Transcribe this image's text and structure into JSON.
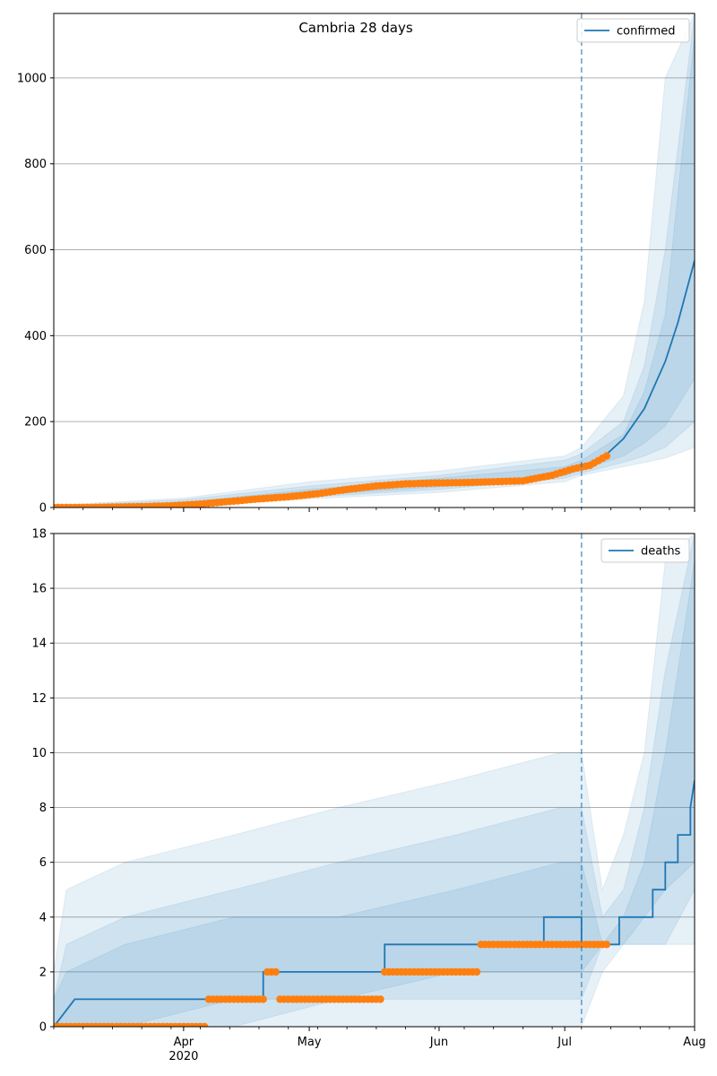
{
  "title": "Cambria 28 days",
  "chart_data": [
    {
      "type": "line",
      "name": "confirmed-panel",
      "series": [
        {
          "name": "confirmed",
          "x": [
            "2020-03-04",
            "2020-03-11",
            "2020-03-18",
            "2020-03-25",
            "2020-04-01",
            "2020-04-08",
            "2020-04-15",
            "2020-04-22",
            "2020-04-29",
            "2020-05-06",
            "2020-05-13",
            "2020-05-20",
            "2020-05-27",
            "2020-06-03",
            "2020-06-10",
            "2020-06-17",
            "2020-06-24",
            "2020-07-01",
            "2020-07-05",
            "2020-07-10",
            "2020-07-15",
            "2020-07-20",
            "2020-07-25",
            "2020-07-28",
            "2020-08-01"
          ],
          "values": [
            0,
            1,
            2,
            4,
            7,
            11,
            17,
            24,
            30,
            37,
            45,
            51,
            55,
            58,
            60,
            62,
            68,
            80,
            95,
            115,
            160,
            230,
            340,
            430,
            575
          ]
        }
      ],
      "observed": {
        "x": [
          "2020-03-01",
          "2020-03-08",
          "2020-03-15",
          "2020-03-22",
          "2020-03-29",
          "2020-04-05",
          "2020-04-12",
          "2020-04-19",
          "2020-04-26",
          "2020-05-03",
          "2020-05-10",
          "2020-05-17",
          "2020-05-24",
          "2020-05-31",
          "2020-06-07",
          "2020-06-14",
          "2020-06-21",
          "2020-06-28",
          "2020-07-03",
          "2020-07-07",
          "2020-07-11"
        ],
        "values": [
          0,
          0,
          1,
          2,
          4,
          8,
          14,
          20,
          25,
          32,
          42,
          50,
          55,
          57,
          58,
          60,
          62,
          75,
          90,
          98,
          120
        ]
      },
      "bands": [
        {
          "x": [
            "2020-03-01",
            "2020-04-01",
            "2020-05-01",
            "2020-06-01",
            "2020-07-01",
            "2020-07-05",
            "2020-07-15",
            "2020-07-20",
            "2020-07-25",
            "2020-08-01"
          ],
          "lower": [
            0,
            3,
            20,
            35,
            60,
            75,
            95,
            105,
            115,
            140
          ],
          "upper": [
            5,
            22,
            60,
            85,
            120,
            140,
            260,
            480,
            1000,
            1150
          ]
        },
        {
          "x": [
            "2020-03-01",
            "2020-04-01",
            "2020-05-01",
            "2020-06-01",
            "2020-07-01",
            "2020-07-05",
            "2020-07-15",
            "2020-07-20",
            "2020-07-25",
            "2020-08-01"
          ],
          "lower": [
            0,
            4,
            24,
            42,
            68,
            80,
            105,
            120,
            140,
            200
          ],
          "upper": [
            3,
            18,
            50,
            75,
            110,
            125,
            200,
            330,
            600,
            1150
          ]
        },
        {
          "x": [
            "2020-03-01",
            "2020-04-01",
            "2020-05-01",
            "2020-06-01",
            "2020-07-01",
            "2020-07-05",
            "2020-07-15",
            "2020-07-20",
            "2020-07-25",
            "2020-08-01"
          ],
          "lower": [
            0,
            5,
            28,
            48,
            74,
            88,
            120,
            150,
            190,
            300
          ],
          "upper": [
            2,
            12,
            42,
            68,
            95,
            110,
            170,
            270,
            450,
            1100
          ]
        }
      ],
      "vline": "2020-07-05",
      "ylim": [
        0,
        1150
      ],
      "yticks": [
        0,
        200,
        400,
        600,
        800,
        1000
      ],
      "grid": true,
      "legend": "top-right",
      "legend_label": "confirmed"
    },
    {
      "type": "line",
      "name": "deaths-panel",
      "series": [
        {
          "name": "deaths",
          "x": [
            "2020-03-01",
            "2020-03_6",
            "2020-03-06",
            "2020-04-20",
            "2020-04-20",
            "2020-05-19",
            "2020-05-19",
            "2020-06-26",
            "2020-06-26",
            "2020-07-05",
            "2020-07-05",
            "2020-07-14",
            "2020-07-14",
            "2020-07-22",
            "2020-07-22",
            "2020-07-25",
            "2020-07-25",
            "2020-07-28",
            "2020-07-28",
            "2020-07-31",
            "2020-07-31",
            "2020-08-01"
          ],
          "values": [
            0,
            0,
            1,
            1,
            2,
            2,
            3,
            3,
            4,
            4,
            3,
            3,
            4,
            4,
            5,
            5,
            6,
            6,
            7,
            7,
            8,
            9
          ]
        }
      ],
      "observed": {
        "x": [
          "2020-03-01",
          "2020-04-07",
          "2020-04-07",
          "2020-04-21",
          "2020-04-21",
          "2020-04-24",
          "2020-04-24",
          "2020-05-19",
          "2020-05-19",
          "2020-06-11",
          "2020-06-11",
          "2020-07-11"
        ],
        "values": [
          0,
          0,
          1,
          1,
          2,
          2,
          1,
          1,
          2,
          2,
          3,
          3
        ]
      },
      "bands": [
        {
          "x": [
            "2020-03-01",
            "2020-03-04",
            "2020-03-18",
            "2020-04-13",
            "2020-05-08",
            "2020-06-05",
            "2020-06-30",
            "2020-07-05",
            "2020-07-10",
            "2020-07-15",
            "2020-07-20",
            "2020-07-25",
            "2020-08-01"
          ],
          "lower": [
            0,
            0,
            0,
            0,
            0,
            0,
            0,
            0,
            2,
            3,
            3,
            3,
            3
          ],
          "upper": [
            2,
            5,
            6,
            7,
            8,
            9,
            10,
            10,
            5,
            7,
            10,
            17,
            18
          ]
        },
        {
          "x": [
            "2020-03-01",
            "2020-03-04",
            "2020-03-18",
            "2020-04-13",
            "2020-05-08",
            "2020-06-05",
            "2020-06-30",
            "2020-07-05",
            "2020-07-10",
            "2020-07-15",
            "2020-07-20",
            "2020-07-25",
            "2020-08-01"
          ],
          "lower": [
            0,
            0,
            0,
            0,
            1,
            1,
            1,
            1,
            3,
            3,
            3,
            3,
            5
          ],
          "upper": [
            1,
            3,
            4,
            5,
            6,
            7,
            8,
            8,
            4,
            5,
            8,
            13,
            18
          ]
        },
        {
          "x": [
            "2020-03-01",
            "2020-03-04",
            "2020-03-18",
            "2020-04-13",
            "2020-05-08",
            "2020-06-05",
            "2020-06-30",
            "2020-07-05",
            "2020-07-10",
            "2020-07-15",
            "2020-07-20",
            "2020-07-25",
            "2020-08-01"
          ],
          "lower": [
            0,
            0,
            0,
            1,
            1,
            2,
            2,
            2,
            3,
            3,
            4,
            5,
            6
          ],
          "upper": [
            1,
            2,
            3,
            4,
            4,
            5,
            6,
            6,
            3,
            4,
            6,
            10,
            17
          ]
        }
      ],
      "vline": "2020-07-05",
      "ylim": [
        0,
        18
      ],
      "yticks": [
        0,
        2,
        4,
        6,
        8,
        10,
        12,
        14,
        16,
        18
      ],
      "grid": true,
      "legend": "top-right",
      "legend_label": "deaths"
    }
  ],
  "xaxis": {
    "range": [
      "2020-03-01",
      "2020-08-01"
    ],
    "major_ticks": [
      {
        "date": "2020-04-01",
        "label": "Apr",
        "sub": "2020"
      },
      {
        "date": "2020-05-01",
        "label": "May",
        "sub": ""
      },
      {
        "date": "2020-06-01",
        "label": "Jun",
        "sub": ""
      },
      {
        "date": "2020-07-01",
        "label": "Jul",
        "sub": ""
      },
      {
        "date": "2020-08-01",
        "label": "Aug",
        "sub": ""
      }
    ]
  },
  "colors": {
    "line": "#1f77b4",
    "observed": "#ff7f0e",
    "band": "#1f77b4",
    "grid": "#b0b0b0",
    "vline": "#1f77b4"
  }
}
